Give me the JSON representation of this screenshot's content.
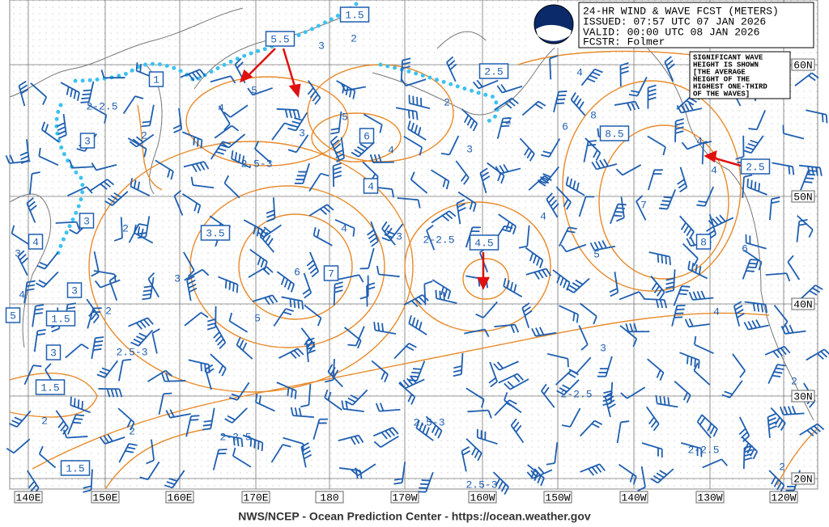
{
  "header": {
    "title": "24-HR WIND & WAVE FCST (METERS)",
    "issued": "ISSUED: 07:57 UTC 07 JAN 2026",
    "valid": "VALID:  00:00 UTC 08 JAN 2026",
    "forecaster": "FCSTR:  Folmer"
  },
  "note": [
    "SIGNIFICANT WAVE",
    "HEIGHT IS SHOWN",
    "[THE AVERAGE",
    "HEIGHT OF THE",
    "HIGHEST ONE-THIRD",
    "OF THE WAVES]"
  ],
  "latitude_labels": [
    "60N",
    "50N",
    "40N",
    "30N",
    "20N"
  ],
  "longitude_labels": [
    "140E",
    "150E",
    "160E",
    "170E",
    "180",
    "170W",
    "160W",
    "150W",
    "140W",
    "130W",
    "120W"
  ],
  "boxed_heights": [
    "1.5",
    "5.5",
    "1",
    "2.5",
    "6",
    "8.5",
    "2.5",
    "3",
    "4",
    "3",
    "4",
    "3.5",
    "4.5",
    "8",
    "7",
    "3",
    "5",
    "1.5",
    "3",
    "1.5",
    "1.5"
  ],
  "contour_labels": [
    "2-2.5",
    "2",
    "4",
    "5",
    "3",
    "2",
    "5",
    "3",
    "2.5-3",
    "4",
    "3",
    "2",
    "2",
    "4",
    "6",
    "8",
    "4",
    "4",
    "7",
    "5",
    "6",
    "4",
    "3",
    "4",
    "3",
    "2-2.5",
    "4",
    "6",
    "5",
    "3",
    "2",
    "3",
    "4",
    "2",
    "2.5-3",
    "2",
    "2",
    "2-2.5",
    "2.5-3",
    "2-2.5",
    "2-2.5",
    "2",
    "2",
    "2.5-3"
  ],
  "footer": "NWS/NCEP - Ocean Prediction Center - https://ocean.weather.gov"
}
